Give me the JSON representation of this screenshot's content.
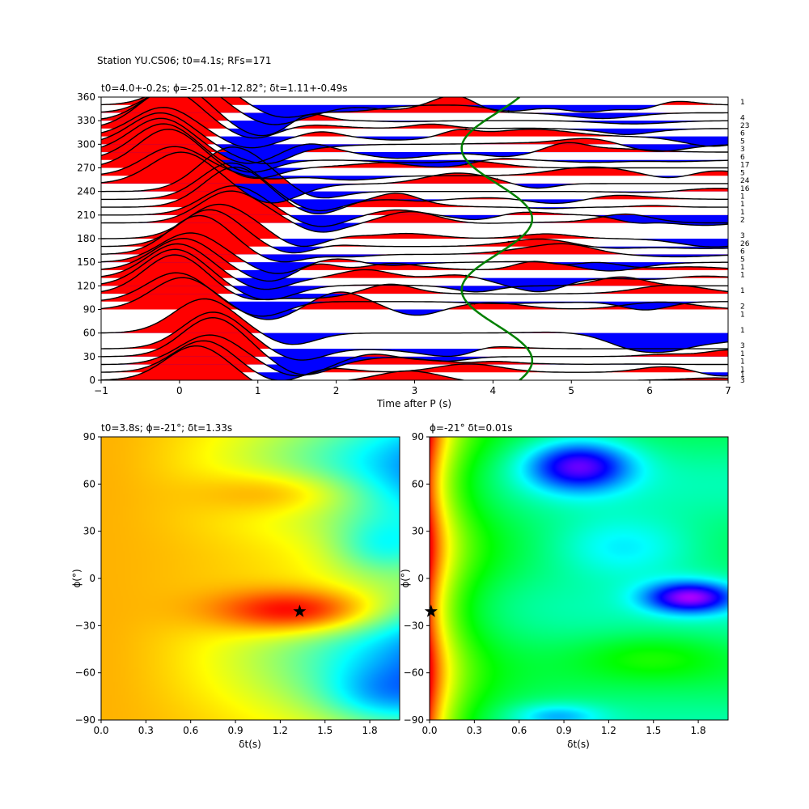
{
  "suptitle": "Station YU.CS06; t0=4.1s; RFs=171",
  "chart_data": [
    {
      "type": "line",
      "subtitle": "t0=4.0+-0.2s; ϕ=-25.01+-12.82°; δt=1.11+-0.49s",
      "xlabel": "Time after P (s)",
      "ylabel": "",
      "xlim": [
        -1,
        7
      ],
      "ylim": [
        0,
        360
      ],
      "xticks": [
        "−1",
        "0",
        "1",
        "2",
        "3",
        "4",
        "5",
        "6",
        "7"
      ],
      "yticks": [
        "0",
        "30",
        "60",
        "90",
        "120",
        "150",
        "180",
        "210",
        "240",
        "270",
        "300",
        "330",
        "360"
      ],
      "trace_baz": [
        0,
        10,
        20,
        30,
        40,
        60,
        90,
        100,
        110,
        120,
        130,
        140,
        150,
        160,
        170,
        180,
        200,
        210,
        220,
        230,
        240,
        250,
        260,
        270,
        280,
        290,
        300,
        310,
        320,
        330,
        340,
        350
      ],
      "bin_counts": [
        {
          "baz": 0,
          "label": "3"
        },
        {
          "baz": 7,
          "label": "1"
        },
        {
          "baz": 14,
          "label": "1"
        },
        {
          "baz": 24,
          "label": "1"
        },
        {
          "baz": 34,
          "label": "1"
        },
        {
          "baz": 44,
          "label": "3"
        },
        {
          "baz": 64,
          "label": "1"
        },
        {
          "baz": 84,
          "label": "1"
        },
        {
          "baz": 94,
          "label": "2"
        },
        {
          "baz": 114,
          "label": "1"
        },
        {
          "baz": 134,
          "label": "1"
        },
        {
          "baz": 144,
          "label": "1"
        },
        {
          "baz": 154,
          "label": "5"
        },
        {
          "baz": 164,
          "label": "6"
        },
        {
          "baz": 174,
          "label": "26"
        },
        {
          "baz": 184,
          "label": "3"
        },
        {
          "baz": 204,
          "label": "2"
        },
        {
          "baz": 214,
          "label": "1"
        },
        {
          "baz": 224,
          "label": "1"
        },
        {
          "baz": 234,
          "label": "1"
        },
        {
          "baz": 244,
          "label": "16"
        },
        {
          "baz": 254,
          "label": "24"
        },
        {
          "baz": 264,
          "label": "5"
        },
        {
          "baz": 274,
          "label": "17"
        },
        {
          "baz": 284,
          "label": "6"
        },
        {
          "baz": 294,
          "label": "3"
        },
        {
          "baz": 304,
          "label": "5"
        },
        {
          "baz": 314,
          "label": "6"
        },
        {
          "baz": 324,
          "label": "23"
        },
        {
          "baz": 334,
          "label": "4"
        },
        {
          "baz": 354,
          "label": "1"
        }
      ],
      "fit_curve": {
        "color": "#008000",
        "mean_time": 4.05,
        "amplitude": 0.45,
        "phase_deg": -25
      }
    },
    {
      "type": "heatmap",
      "subtitle": "t0=3.8s; ϕ=-21°; δt=1.33s",
      "xlabel": "δt(s)",
      "ylabel": "ϕ(°)",
      "xlim": [
        0,
        2
      ],
      "ylim": [
        -90,
        90
      ],
      "xticks": [
        "0.0",
        "0.3",
        "0.6",
        "0.9",
        "1.2",
        "1.5",
        "1.8"
      ],
      "yticks": [
        "−90",
        "−60",
        "−30",
        "0",
        "30",
        "60",
        "90"
      ],
      "colormap": "jet",
      "best": {
        "dt": 1.33,
        "phi": -21
      }
    },
    {
      "type": "heatmap",
      "subtitle": "ϕ=-21° δt=0.01s",
      "xlabel": "δt(s)",
      "ylabel": "ϕ(°)",
      "xlim": [
        0,
        2
      ],
      "ylim": [
        -90,
        90
      ],
      "xticks": [
        "0.0",
        "0.3",
        "0.6",
        "0.9",
        "1.2",
        "1.5",
        "1.8"
      ],
      "yticks": [
        "−90",
        "−60",
        "−30",
        "0",
        "30",
        "60",
        "90"
      ],
      "colormap": "hsv",
      "best": {
        "dt": 0.01,
        "phi": -21
      }
    }
  ]
}
